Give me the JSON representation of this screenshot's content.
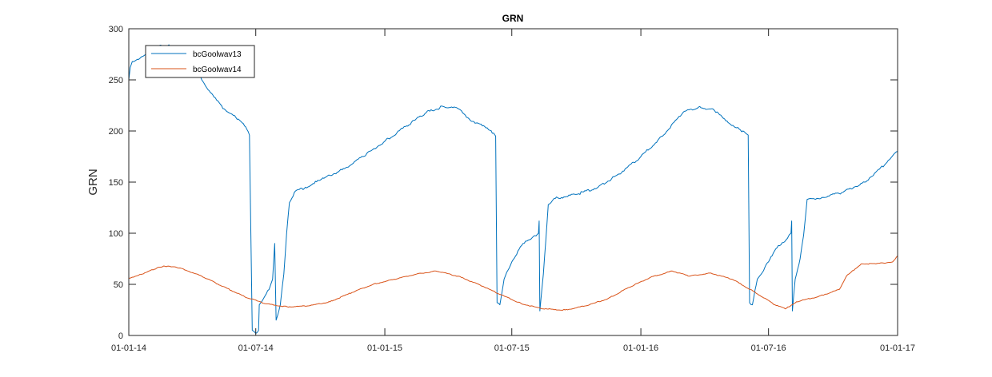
{
  "chart_data": {
    "type": "line",
    "title": "GRN",
    "xlabel": "",
    "ylabel": "GRN",
    "xlim": [
      "2014-01-01",
      "2017-01-01"
    ],
    "ylim": [
      0,
      300
    ],
    "x_ticks": [
      {
        "date": "2014-01-01",
        "label": "01-01-14"
      },
      {
        "date": "2014-07-01",
        "label": "01-07-14"
      },
      {
        "date": "2015-01-01",
        "label": "01-01-15"
      },
      {
        "date": "2015-07-01",
        "label": "01-07-15"
      },
      {
        "date": "2016-01-01",
        "label": "01-01-16"
      },
      {
        "date": "2016-07-01",
        "label": "01-07-16"
      },
      {
        "date": "2017-01-01",
        "label": "01-01-17"
      }
    ],
    "y_ticks": [
      0,
      50,
      100,
      150,
      200,
      250,
      300
    ],
    "grid": false,
    "legend": {
      "position": "top-left"
    },
    "series": [
      {
        "name": "bcGoolwav13",
        "color": "#0072BD",
        "points": [
          [
            "2014-01-01",
            250
          ],
          [
            "2014-01-03",
            262
          ],
          [
            "2014-01-06",
            268
          ],
          [
            "2014-01-15",
            270
          ],
          [
            "2014-01-25",
            275
          ],
          [
            "2014-02-05",
            280
          ],
          [
            "2014-02-15",
            284
          ],
          [
            "2014-03-01",
            283
          ],
          [
            "2014-03-15",
            279
          ],
          [
            "2014-04-01",
            268
          ],
          [
            "2014-04-15",
            250
          ],
          [
            "2014-05-01",
            235
          ],
          [
            "2014-05-15",
            222
          ],
          [
            "2014-06-01",
            215
          ],
          [
            "2014-06-15",
            205
          ],
          [
            "2014-06-22",
            196
          ],
          [
            "2014-06-26",
            5
          ],
          [
            "2014-07-01",
            2
          ],
          [
            "2014-07-05",
            5
          ],
          [
            "2014-07-06",
            30
          ],
          [
            "2014-07-12",
            36
          ],
          [
            "2014-07-20",
            45
          ],
          [
            "2014-07-25",
            55
          ],
          [
            "2014-07-28",
            90
          ],
          [
            "2014-07-30",
            15
          ],
          [
            "2014-08-05",
            30
          ],
          [
            "2014-08-10",
            60
          ],
          [
            "2014-08-14",
            100
          ],
          [
            "2014-08-18",
            130
          ],
          [
            "2014-08-25",
            140
          ],
          [
            "2014-09-10",
            145
          ],
          [
            "2014-10-01",
            152
          ],
          [
            "2014-11-01",
            162
          ],
          [
            "2014-12-01",
            175
          ],
          [
            "2015-01-01",
            190
          ],
          [
            "2015-02-01",
            205
          ],
          [
            "2015-03-01",
            218
          ],
          [
            "2015-03-25",
            224
          ],
          [
            "2015-04-15",
            222
          ],
          [
            "2015-05-01",
            212
          ],
          [
            "2015-05-20",
            205
          ],
          [
            "2015-06-05",
            198
          ],
          [
            "2015-06-08",
            195
          ],
          [
            "2015-06-10",
            32
          ],
          [
            "2015-06-14",
            30
          ],
          [
            "2015-06-20",
            55
          ],
          [
            "2015-07-01",
            72
          ],
          [
            "2015-07-15",
            88
          ],
          [
            "2015-08-01",
            97
          ],
          [
            "2015-08-08",
            100
          ],
          [
            "2015-08-09",
            112
          ],
          [
            "2015-08-10",
            24
          ],
          [
            "2015-08-15",
            60
          ],
          [
            "2015-08-22",
            128
          ],
          [
            "2015-09-01",
            134
          ],
          [
            "2015-10-01",
            138
          ],
          [
            "2015-11-01",
            145
          ],
          [
            "2015-12-01",
            158
          ],
          [
            "2016-01-01",
            175
          ],
          [
            "2016-02-01",
            195
          ],
          [
            "2016-03-01",
            218
          ],
          [
            "2016-03-25",
            224
          ],
          [
            "2016-04-15",
            220
          ],
          [
            "2016-05-01",
            210
          ],
          [
            "2016-05-20",
            202
          ],
          [
            "2016-06-02",
            196
          ],
          [
            "2016-06-04",
            32
          ],
          [
            "2016-06-08",
            30
          ],
          [
            "2016-06-15",
            55
          ],
          [
            "2016-07-01",
            72
          ],
          [
            "2016-07-15",
            88
          ],
          [
            "2016-07-28",
            95
          ],
          [
            "2016-08-02",
            100
          ],
          [
            "2016-08-03",
            112
          ],
          [
            "2016-08-04",
            24
          ],
          [
            "2016-08-08",
            55
          ],
          [
            "2016-08-15",
            75
          ],
          [
            "2016-08-20",
            98
          ],
          [
            "2016-08-25",
            133
          ],
          [
            "2016-09-15",
            135
          ],
          [
            "2016-10-15",
            140
          ],
          [
            "2016-11-15",
            150
          ],
          [
            "2016-12-15",
            168
          ],
          [
            "2017-01-01",
            180
          ]
        ]
      },
      {
        "name": "bcGoolwav14",
        "color": "#D95319",
        "points": [
          [
            "2014-01-01",
            56
          ],
          [
            "2014-01-20",
            60
          ],
          [
            "2014-02-10",
            66
          ],
          [
            "2014-02-20",
            68
          ],
          [
            "2014-03-15",
            66
          ],
          [
            "2014-04-15",
            58
          ],
          [
            "2014-05-15",
            48
          ],
          [
            "2014-06-15",
            38
          ],
          [
            "2014-07-15",
            31
          ],
          [
            "2014-08-15",
            28
          ],
          [
            "2014-09-15",
            29
          ],
          [
            "2014-10-15",
            33
          ],
          [
            "2014-11-15",
            42
          ],
          [
            "2014-12-15",
            50
          ],
          [
            "2015-01-15",
            55
          ],
          [
            "2015-02-15",
            60
          ],
          [
            "2015-03-15",
            63
          ],
          [
            "2015-04-15",
            58
          ],
          [
            "2015-05-15",
            50
          ],
          [
            "2015-06-15",
            40
          ],
          [
            "2015-07-15",
            31
          ],
          [
            "2015-08-15",
            26
          ],
          [
            "2015-09-15",
            25
          ],
          [
            "2015-10-15",
            29
          ],
          [
            "2015-11-15",
            36
          ],
          [
            "2015-12-15",
            47
          ],
          [
            "2016-01-15",
            57
          ],
          [
            "2016-02-15",
            63
          ],
          [
            "2016-03-10",
            58
          ],
          [
            "2016-04-10",
            61
          ],
          [
            "2016-05-10",
            55
          ],
          [
            "2016-06-10",
            43
          ],
          [
            "2016-07-10",
            30
          ],
          [
            "2016-07-25",
            26
          ],
          [
            "2016-08-10",
            33
          ],
          [
            "2016-09-10",
            38
          ],
          [
            "2016-10-10",
            45
          ],
          [
            "2016-10-20",
            58
          ],
          [
            "2016-11-10",
            70
          ],
          [
            "2016-12-01",
            70
          ],
          [
            "2016-12-25",
            72
          ],
          [
            "2017-01-01",
            78
          ]
        ]
      }
    ]
  }
}
